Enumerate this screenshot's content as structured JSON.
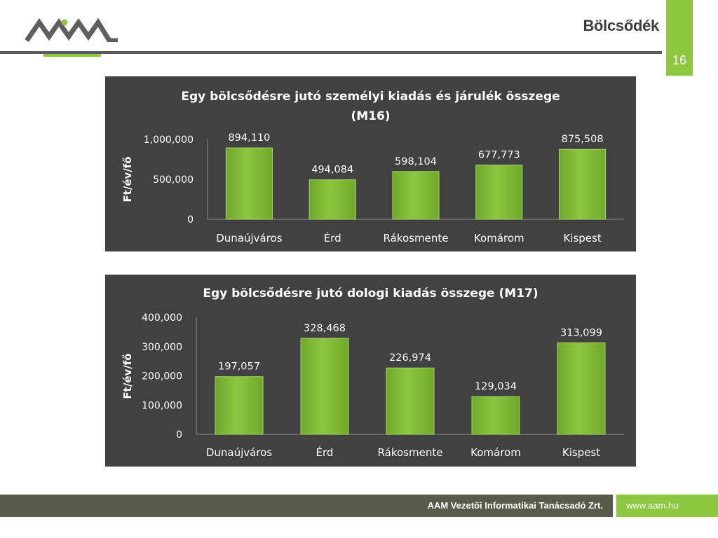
{
  "header": {
    "title": "Bölcsődék",
    "page_number": "16"
  },
  "colors": {
    "accent_green": "#8dc63f",
    "panel_bg": "#414141",
    "rule_gray": "#595959",
    "footer_bg": "#5a5a4a"
  },
  "footer": {
    "company": "AAM Vezetői Informatikai Tanácsadó Zrt.",
    "website": "www.aam.hu"
  },
  "chart_data": [
    {
      "type": "bar",
      "title_lines": [
        "Egy bölcsődésre jutó személyi kiadás és járulék összege",
        "(M16)"
      ],
      "ylabel": "Ft/év/fő",
      "xlabel": "",
      "categories": [
        "Dunaújváros",
        "Érd",
        "Rákosmente",
        "Komárom",
        "Kispest"
      ],
      "values": [
        894110,
        494084,
        598104,
        677773,
        875508
      ],
      "value_labels": [
        "894,110",
        "494,084",
        "598,104",
        "677,773",
        "875,508"
      ],
      "ylim": [
        0,
        1000000
      ],
      "yticks": [
        0,
        500000,
        1000000
      ],
      "ytick_labels": [
        "0",
        "500,000",
        "1,000,000"
      ],
      "grid": false,
      "legend": "none",
      "bar_color": "#8dc63f"
    },
    {
      "type": "bar",
      "title_lines": [
        "Egy bölcsődésre jutó dologi kiadás összege (M17)"
      ],
      "ylabel": "Ft/év/fő",
      "xlabel": "",
      "categories": [
        "Dunaújváros",
        "Érd",
        "Rákosmente",
        "Komárom",
        "Kispest"
      ],
      "values": [
        197057,
        328468,
        226974,
        129034,
        313099
      ],
      "value_labels": [
        "197,057",
        "328,468",
        "226,974",
        "129,034",
        "313,099"
      ],
      "ylim": [
        0,
        400000
      ],
      "yticks": [
        0,
        100000,
        200000,
        300000,
        400000
      ],
      "ytick_labels": [
        "0",
        "100,000",
        "200,000",
        "300,000",
        "400,000"
      ],
      "grid": false,
      "legend": "none",
      "bar_color": "#8dc63f"
    }
  ]
}
